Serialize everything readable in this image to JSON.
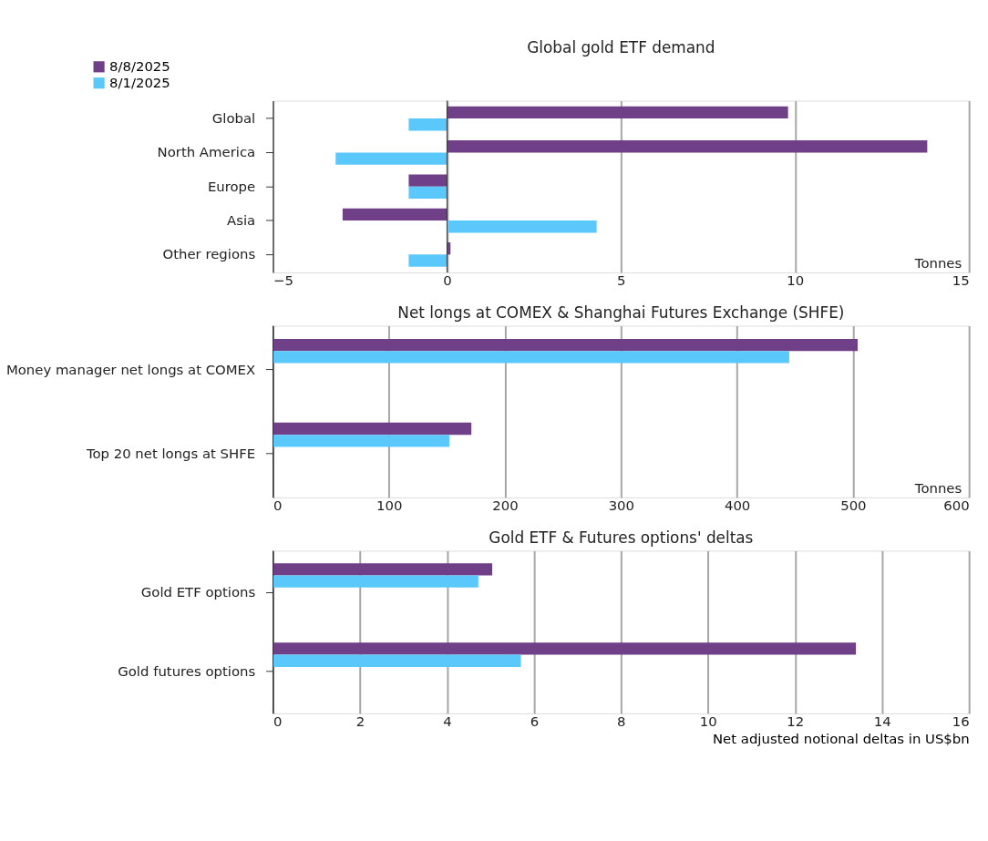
{
  "chart_data": [
    {
      "type": "bar",
      "orientation": "horizontal",
      "title": "Global gold ETF demand",
      "categories": [
        "Global",
        "North America",
        "Europe",
        "Asia",
        "Other regions"
      ],
      "series": [
        {
          "name": "8/8/2025",
          "color": "#6f3f87",
          "values": [
            9.8,
            13.8,
            -1.1,
            -3.0,
            0.1
          ]
        },
        {
          "name": "8/1/2025",
          "color": "#5bc8fb",
          "values": [
            -1.1,
            -3.2,
            -1.1,
            4.3,
            -1.1
          ]
        }
      ],
      "xlim": [
        -5,
        15
      ],
      "xticks": [
        -5,
        0,
        5,
        10,
        15
      ],
      "grid": "x",
      "legend": "top left",
      "annotations": [
        "Tonnes"
      ]
    },
    {
      "type": "bar",
      "orientation": "horizontal",
      "title": "Net longs at COMEX & Shanghai Futures Exchange (SHFE)",
      "categories": [
        "Money manager net longs at COMEX",
        "Top 20 net longs at SHFE"
      ],
      "series": [
        {
          "color": "#6f3f87",
          "values": [
            504,
            171
          ]
        },
        {
          "color": "#5bc8fb",
          "values": [
            445,
            152
          ]
        }
      ],
      "xlim": [
        0,
        600
      ],
      "xticks": [
        0,
        100,
        200,
        300,
        400,
        500,
        600
      ],
      "grid": "x",
      "annotations": [
        "Tonnes"
      ]
    },
    {
      "type": "bar",
      "orientation": "horizontal",
      "title": "Gold ETF & Futures options' deltas",
      "xlabel": "Net adjusted notional deltas in US$bn",
      "categories": [
        "Gold ETF options",
        "Gold futures options"
      ],
      "series": [
        {
          "color": "#6f3f87",
          "values": [
            5.04,
            13.4
          ]
        },
        {
          "color": "#5bc8fb",
          "values": [
            4.72,
            5.7
          ]
        }
      ],
      "xlim": [
        0,
        16
      ],
      "xticks": [
        0,
        2,
        4,
        6,
        8,
        10,
        12,
        14,
        16
      ],
      "grid": "x"
    }
  ]
}
